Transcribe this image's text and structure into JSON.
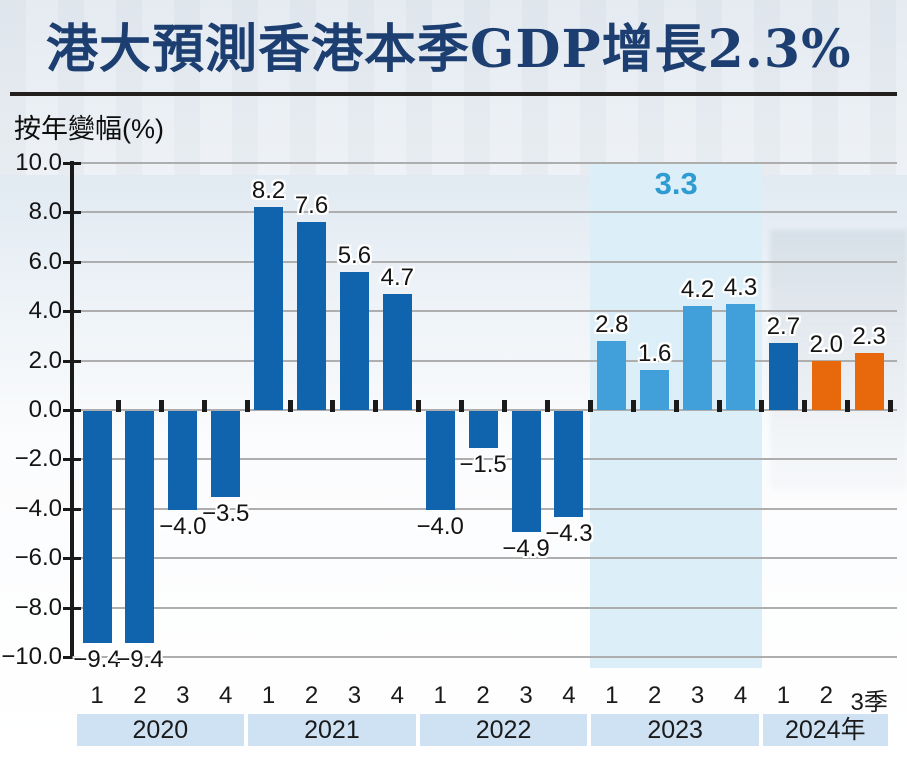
{
  "header": {
    "title": "港大預測香港本季GDP增長2.3%"
  },
  "chart_data": {
    "type": "bar",
    "title": "港大預測香港本季GDP增長2.3%",
    "ylabel": "按年變幅(%)",
    "xlabel": "",
    "ylim": [
      -10,
      10
    ],
    "ytick_step": 2,
    "grid": true,
    "ytick_labels": [
      "10.0",
      "8.0",
      "6.0",
      "4.0",
      "2.0",
      "0.0",
      "−2.0",
      "−4.0",
      "−6.0",
      "−8.0",
      "−10.0"
    ],
    "quarter_labels": [
      "1",
      "2",
      "3",
      "4",
      "1",
      "2",
      "3",
      "4",
      "1",
      "2",
      "3",
      "4",
      "1",
      "2",
      "3",
      "4",
      "1",
      "2",
      "3季"
    ],
    "values": [
      -9.4,
      -9.4,
      -4.0,
      -3.5,
      8.2,
      7.6,
      5.6,
      4.7,
      -4.0,
      -1.5,
      -4.9,
      -4.3,
      2.8,
      1.6,
      4.2,
      4.3,
      2.7,
      2.0,
      2.3
    ],
    "value_labels": [
      "−9.4",
      "−9.4",
      "−4.0",
      "−3.5",
      "8.2",
      "7.6",
      "5.6",
      "4.7",
      "−4.0",
      "−1.5",
      "−4.9",
      "−4.3",
      "2.8",
      "1.6",
      "4.2",
      "4.3",
      "2.7",
      "2.0",
      "2.3"
    ],
    "bar_color_keys": [
      "dark",
      "dark",
      "dark",
      "dark",
      "dark",
      "dark",
      "dark",
      "dark",
      "dark",
      "dark",
      "dark",
      "dark",
      "light",
      "light",
      "light",
      "light",
      "dark",
      "orange",
      "orange"
    ],
    "years": [
      {
        "label": "2020",
        "start": 0,
        "count": 4,
        "highlight": false
      },
      {
        "label": "2021",
        "start": 4,
        "count": 4,
        "highlight": false
      },
      {
        "label": "2022",
        "start": 8,
        "count": 4,
        "highlight": false
      },
      {
        "label": "2023",
        "start": 12,
        "count": 4,
        "highlight": true
      },
      {
        "label": "2024年",
        "start": 16,
        "count": 3,
        "highlight": false
      }
    ],
    "annotation": {
      "text": "3.3",
      "over_year": "2023"
    },
    "colors": {
      "dark": "#1064ae",
      "light": "#41a0d9",
      "orange": "#e8690b",
      "highlight_band": "#dceef7",
      "year_band": "#cfe2f3",
      "annotation": "#2e9bd3",
      "title": "#1c3e70",
      "gridline": "#aeaeae",
      "axis": "#1a1a1a"
    }
  }
}
